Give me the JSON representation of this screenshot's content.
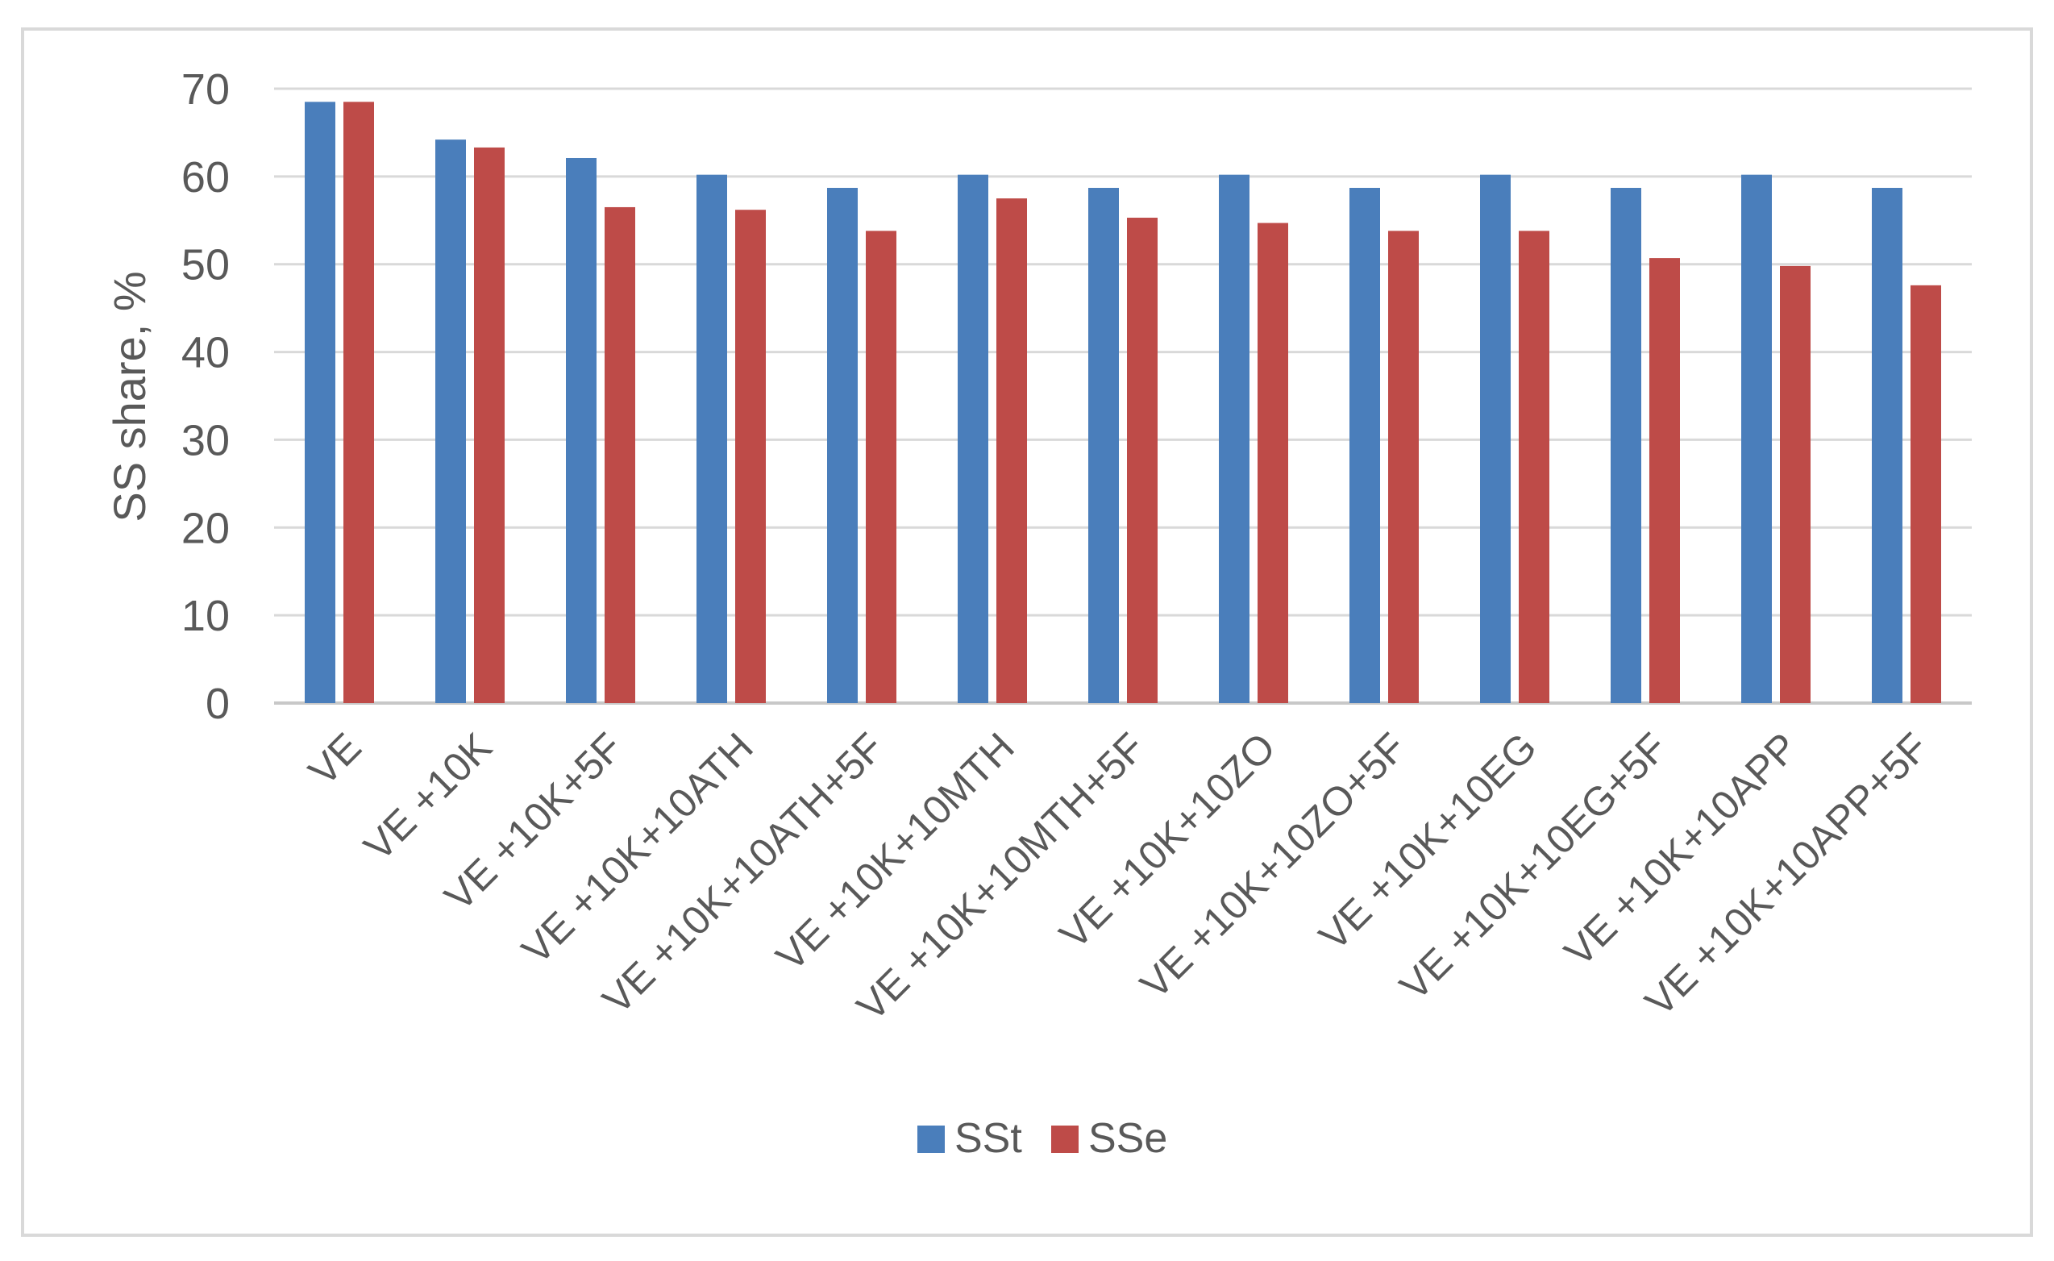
{
  "chart_data": {
    "type": "bar",
    "title": "",
    "xlabel": "",
    "ylabel": "SS share, %",
    "ylim": [
      0,
      70
    ],
    "yticks": [
      0,
      10,
      20,
      30,
      40,
      50,
      60,
      70
    ],
    "grid": true,
    "legend_position": "bottom",
    "categories": [
      "VE",
      "VE +10K",
      "VE +10K+5F",
      "VE +10K+10ATH",
      "VE +10K+10ATH+5F",
      "VE +10K+10MTH",
      "VE +10K+10MTH+5F",
      "VE +10K+10ZO",
      "VE +10K+10ZO+5F",
      "VE +10K+10EG",
      "VE +10K+10EG+5F",
      "VE +10K+10APP",
      "VE +10K+10APP+5F"
    ],
    "series": [
      {
        "name": "SSt",
        "color": "#4a7ebb",
        "values": [
          68.5,
          64.2,
          62.1,
          60.2,
          58.7,
          60.2,
          58.7,
          60.2,
          58.7,
          60.2,
          58.7,
          60.2,
          58.7
        ]
      },
      {
        "name": "SSe",
        "color": "#be4b48",
        "values": [
          68.5,
          63.3,
          56.5,
          56.2,
          53.8,
          57.5,
          55.3,
          54.7,
          53.8,
          53.8,
          50.7,
          49.8,
          47.6
        ]
      }
    ]
  }
}
